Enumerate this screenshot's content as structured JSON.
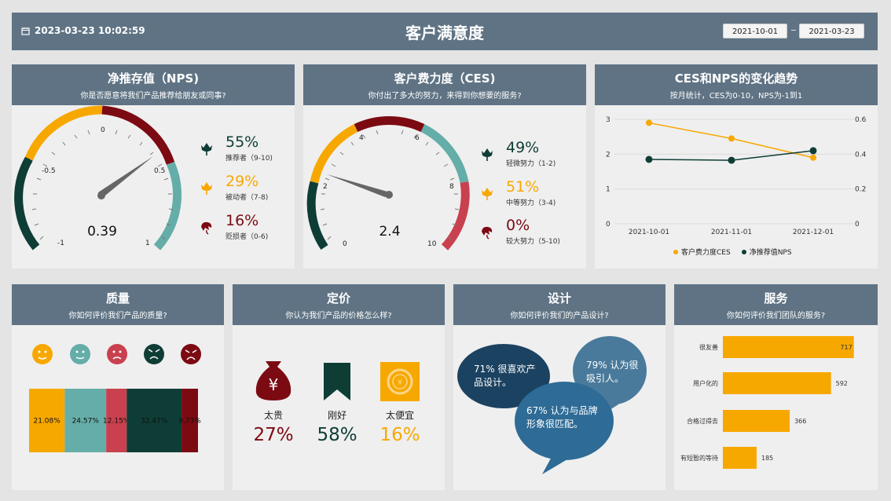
{
  "header": {
    "datetime": "2023-03-23 10:02:59",
    "title": "客户满意度",
    "date_from": "2021-10-01",
    "date_to": "2021-03-23",
    "color": "#5f7384"
  },
  "colors": {
    "dark_green": "#0e3d36",
    "teal": "#65ada8",
    "yellow": "#f7a800",
    "red": "#c9414e",
    "maroon": "#7c0a12",
    "navy": "#1b4261",
    "blue": "#2e6b96",
    "steel": "#4a7a9b"
  },
  "nps": {
    "title": "净推存值（NPS)",
    "subtitle": "你是否愿意将我们产品推荐给朋友或同事?",
    "value": "0.39",
    "needle_value": 0.39,
    "ticks": [
      "-1",
      "-0.5",
      "0",
      "0.5",
      "1"
    ],
    "items": [
      {
        "pct": "55%",
        "label": "推荐者（9-10)",
        "icon": "tulip-icon"
      },
      {
        "pct": "29%",
        "label": "被动者（7-8)",
        "icon": "tulip-icon"
      },
      {
        "pct": "16%",
        "label": "贬损者（0-6)",
        "icon": "wilted-flower-icon"
      }
    ]
  },
  "ces": {
    "title": "客户费力度（CES)",
    "subtitle": "你付出了多大的努力，来得到你想要的服务?",
    "value": "2.4",
    "needle_value": 2.4,
    "ticks": [
      "0",
      "2",
      "4",
      "6",
      "8",
      "10"
    ],
    "items": [
      {
        "pct": "49%",
        "label": "轻微努力（1-2)",
        "icon": "tulip-icon"
      },
      {
        "pct": "51%",
        "label": "中等努力（3-4)",
        "icon": "tulip-icon"
      },
      {
        "pct": "0%",
        "label": "较大努力（5-10)",
        "icon": "wilted-flower-icon"
      }
    ]
  },
  "trend": {
    "title": "CES和NPS的变化趋势",
    "subtitle": "按月统计，CES为0-10，NPS为-1到1",
    "chart_data": {
      "type": "line",
      "x": [
        "2021-10-01",
        "2021-11-01",
        "2021-12-01"
      ],
      "series": [
        {
          "name": "客户费力度CES",
          "values": [
            2.9,
            2.45,
            1.9
          ],
          "axis": "left",
          "color": "#f7a800"
        },
        {
          "name": "净推荐值NPS",
          "values": [
            0.37,
            0.365,
            0.42
          ],
          "axis": "right",
          "color": "#0e3d36"
        }
      ],
      "y_left_ticks": [
        "0",
        "1",
        "2",
        "3"
      ],
      "y_right_ticks": [
        "0",
        "0.2",
        "0.4",
        "0.6"
      ],
      "ylim_left": [
        0,
        3
      ],
      "ylim_right": [
        0,
        0.6
      ],
      "legend": "bottom",
      "grid": true
    }
  },
  "quality": {
    "title": "质量",
    "subtitle": "你如何评价我们产品的质量?",
    "face_icons": [
      "smile-face-icon",
      "neutral-face-icon",
      "sad-face-icon",
      "angry-face-icon",
      "very-angry-face-icon"
    ],
    "chart_data": {
      "type": "bar",
      "segments": [
        {
          "label": "21.08%",
          "value": 21.08,
          "color": "#f7a800"
        },
        {
          "label": "24.57%",
          "value": 24.57,
          "color": "#65ada8"
        },
        {
          "label": "12.15%",
          "value": 12.15,
          "color": "#c9414e"
        },
        {
          "label": "32.47%",
          "value": 32.47,
          "color": "#0e3d36"
        },
        {
          "label": "9.73%",
          "value": 9.73,
          "color": "#7c0a12"
        }
      ]
    }
  },
  "pricing": {
    "title": "定价",
    "subtitle": "你认为我们产品的价格怎么样?",
    "items": [
      {
        "label": "太贵",
        "pct": "27%",
        "icon": "money-bag-icon",
        "color": "#7c0a12"
      },
      {
        "label": "刚好",
        "pct": "58%",
        "icon": "bookmark-icon",
        "color": "#0e3d36"
      },
      {
        "label": "太便宜",
        "pct": "16%",
        "icon": "coin-icon",
        "color": "#f7a800"
      }
    ]
  },
  "design": {
    "title": "设计",
    "subtitle": "你如何评价我们的产品设计?",
    "bubbles": [
      {
        "line1": "71% 很喜欢产",
        "line2": "品设计。"
      },
      {
        "line1": "79% 认为很",
        "line2": "吸引人。"
      },
      {
        "line1": "67% 认为与品牌",
        "line2": "形象很匹配。"
      }
    ]
  },
  "service": {
    "title": "服务",
    "subtitle": "你如何评价我们团队的服务?",
    "chart_data": {
      "type": "bar",
      "orientation": "horizontal",
      "categories": [
        "很友善",
        "用户化的",
        "合格过得去",
        "有短暂的等待"
      ],
      "values": [
        717,
        592,
        366,
        185
      ],
      "color": "#f7a800",
      "xlim": [
        0,
        800
      ]
    }
  }
}
